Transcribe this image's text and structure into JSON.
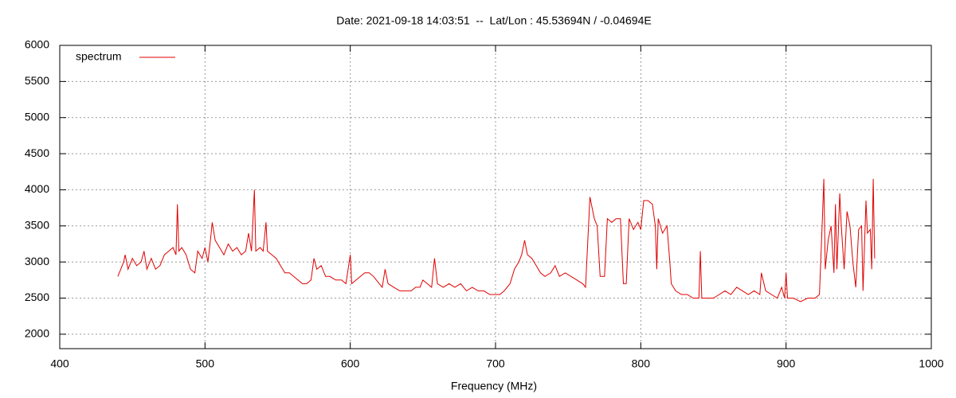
{
  "chart_data": {
    "type": "line",
    "title": "Date: 2021-09-18 14:03:51  --  Lat/Lon : 45.53694N / -0.04694E",
    "x_label": "Frequency (MHz)",
    "xlim": [
      400,
      1000
    ],
    "xticks": [
      400,
      500,
      600,
      700,
      800,
      900,
      1000
    ],
    "ylim": [
      1800,
      6000
    ],
    "yticks": [
      2000,
      2500,
      3000,
      3500,
      4000,
      4500,
      5000,
      5500,
      6000
    ],
    "grid": true,
    "legend": "top-left",
    "x": [
      440,
      442,
      444,
      445,
      447,
      450,
      453,
      456,
      458,
      460,
      463,
      466,
      469,
      472,
      475,
      478,
      480,
      481,
      482,
      484,
      487,
      490,
      493,
      495,
      498,
      500,
      502,
      504,
      505,
      507,
      510,
      513,
      516,
      519,
      522,
      525,
      528,
      530,
      532,
      534,
      535,
      538,
      540,
      542,
      543,
      546,
      549,
      552,
      555,
      558,
      561,
      564,
      567,
      570,
      573,
      575,
      577,
      580,
      583,
      586,
      590,
      594,
      597,
      600,
      601,
      604,
      607,
      610,
      613,
      616,
      620,
      622,
      624,
      626,
      630,
      634,
      638,
      642,
      645,
      648,
      650,
      653,
      656,
      658,
      660,
      664,
      668,
      672,
      676,
      680,
      684,
      688,
      692,
      696,
      700,
      703,
      706,
      710,
      713,
      716,
      718,
      720,
      722,
      725,
      728,
      731,
      734,
      738,
      741,
      744,
      748,
      752,
      756,
      760,
      762,
      765,
      768,
      770,
      772,
      775,
      777,
      780,
      783,
      786,
      788,
      790,
      792,
      795,
      798,
      800,
      802,
      805,
      808,
      810,
      811,
      812,
      815,
      818,
      820,
      821,
      824,
      828,
      832,
      836,
      840,
      841,
      842,
      846,
      850,
      854,
      858,
      862,
      866,
      870,
      874,
      878,
      882,
      883,
      886,
      890,
      894,
      897,
      899,
      900,
      901,
      905,
      910,
      915,
      920,
      923,
      925,
      926,
      927,
      929,
      931,
      933,
      934,
      935,
      937,
      938,
      940,
      942,
      944,
      946,
      948,
      950,
      952,
      953,
      955,
      956,
      958,
      959,
      960,
      961
    ],
    "series": [
      {
        "name": "spectrum",
        "color": "#e00000",
        "values": [
          2800,
          2900,
          3000,
          3100,
          2900,
          3050,
          2950,
          3000,
          3150,
          2900,
          3050,
          2900,
          2950,
          3100,
          3150,
          3200,
          3100,
          3800,
          3150,
          3200,
          3100,
          2900,
          2850,
          3150,
          3050,
          3200,
          3000,
          3350,
          3550,
          3300,
          3200,
          3100,
          3250,
          3150,
          3200,
          3100,
          3150,
          3400,
          3150,
          4000,
          3150,
          3200,
          3150,
          3550,
          3150,
          3100,
          3050,
          2950,
          2850,
          2850,
          2800,
          2750,
          2700,
          2700,
          2750,
          3050,
          2900,
          2950,
          2800,
          2800,
          2750,
          2750,
          2700,
          3100,
          2700,
          2750,
          2800,
          2850,
          2850,
          2800,
          2700,
          2650,
          2900,
          2700,
          2650,
          2600,
          2600,
          2600,
          2650,
          2650,
          2750,
          2700,
          2650,
          3050,
          2700,
          2650,
          2700,
          2650,
          2700,
          2600,
          2650,
          2600,
          2600,
          2550,
          2550,
          2550,
          2600,
          2700,
          2900,
          3000,
          3100,
          3300,
          3100,
          3050,
          2950,
          2850,
          2800,
          2850,
          2950,
          2800,
          2850,
          2800,
          2750,
          2700,
          2650,
          3900,
          3600,
          3500,
          2800,
          2800,
          3600,
          3550,
          3600,
          3600,
          2700,
          2700,
          3600,
          3450,
          3550,
          3450,
          3850,
          3850,
          3800,
          3500,
          2900,
          3600,
          3400,
          3500,
          3000,
          2700,
          2600,
          2550,
          2550,
          2500,
          2500,
          3150,
          2500,
          2500,
          2500,
          2550,
          2600,
          2550,
          2650,
          2600,
          2550,
          2600,
          2550,
          2850,
          2600,
          2550,
          2500,
          2650,
          2500,
          2850,
          2500,
          2500,
          2450,
          2500,
          2500,
          2550,
          3600,
          4150,
          2900,
          3300,
          3500,
          2850,
          3800,
          2900,
          3950,
          3500,
          2900,
          3700,
          3500,
          3000,
          2650,
          3450,
          3500,
          2600,
          3850,
          3400,
          3450,
          2900,
          4150,
          3050
        ]
      }
    ]
  }
}
